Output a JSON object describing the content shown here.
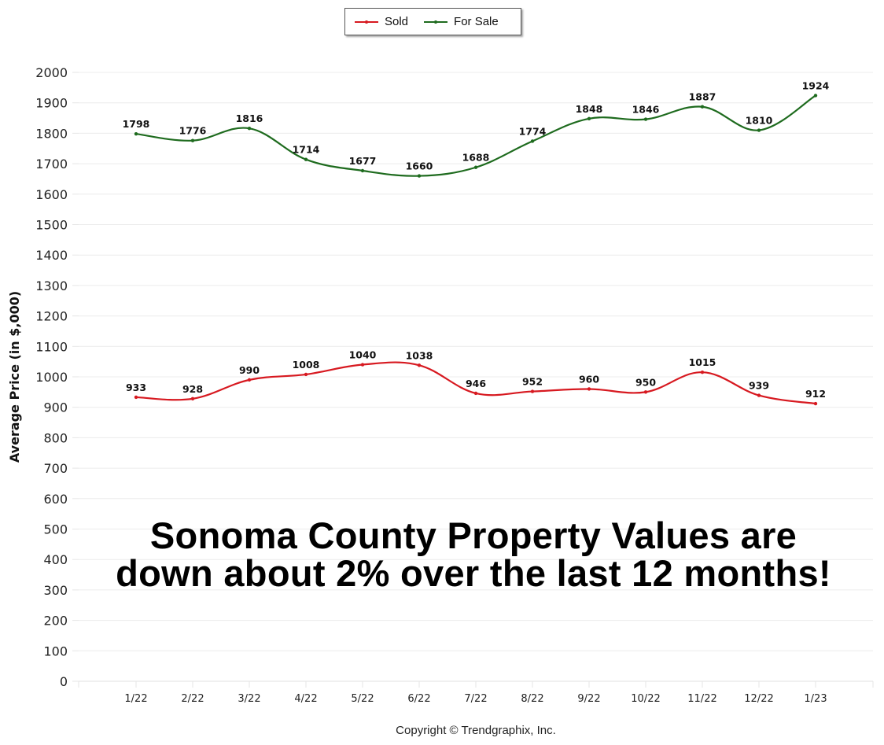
{
  "chart_data": {
    "type": "line",
    "title": "",
    "xlabel": "",
    "ylabel": "Average Price (in $,000)",
    "ylim": [
      0,
      2000
    ],
    "yticks": [
      0,
      100,
      200,
      300,
      400,
      500,
      600,
      700,
      800,
      900,
      1000,
      1100,
      1200,
      1300,
      1400,
      1500,
      1600,
      1700,
      1800,
      1900,
      2000
    ],
    "grid": true,
    "legend_position": "top-center",
    "categories": [
      "1/22",
      "2/22",
      "3/22",
      "4/22",
      "5/22",
      "6/22",
      "7/22",
      "8/22",
      "9/22",
      "10/22",
      "11/22",
      "12/22",
      "1/23"
    ],
    "series": [
      {
        "name": "Sold",
        "color": "#d71920",
        "values": [
          933,
          928,
          990,
          1008,
          1040,
          1038,
          946,
          952,
          960,
          950,
          1015,
          939,
          912
        ]
      },
      {
        "name": "For Sale",
        "color": "#1e6b1e",
        "values": [
          1798,
          1776,
          1816,
          1714,
          1677,
          1660,
          1688,
          1774,
          1848,
          1846,
          1887,
          1810,
          1924
        ]
      }
    ],
    "annotation": {
      "line1": "Sonoma County Property Values are",
      "line2": "down about 2% over the last 12 months!"
    },
    "footer": "Copyright © Trendgraphix, Inc."
  }
}
